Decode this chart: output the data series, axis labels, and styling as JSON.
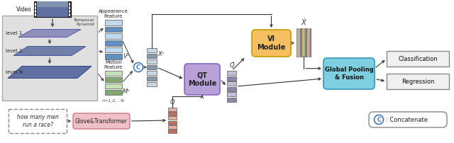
{
  "fig_bg": "#ffffff",
  "elements": {
    "video_label": "Video",
    "temporal_pyramid_label": "Temporal\nPyramid",
    "level1": "level 1",
    "level2": "level 2",
    "levelN": "level N",
    "appearance_feature": "Appearance\nFeature",
    "motion_feature": "Motion\nFeature",
    "n_label": "n=1,2,...N",
    "vn_label": "Vⁿ",
    "mn_label": "Mⁿ",
    "xn_label": "Xⁿ",
    "q_label": "Q",
    "q_hat_label": "Q̂",
    "x_hat_label": "Ẋ",
    "qt_module": "QT\nModule",
    "vi_module": "VI\nModule",
    "global_pooling": "Global Pooling\n& Fusion",
    "classification": "Classification",
    "regression": "Regression",
    "question_text": "how many men\nrun a race?",
    "glove": "Glove&Transformer",
    "concatenate_label": ": Concatenate",
    "qt_color": "#b8a0d8",
    "vi_color": "#f5c060",
    "global_color": "#7ecfdf",
    "glove_color": "#f0c0c8",
    "app_feature_color_dark": "#6090c0",
    "app_feature_color_light": "#c0d8f0",
    "mot_feature_color_dark": "#80a870",
    "mot_feature_color_light": "#c8e0b8",
    "xn_color_dark": "#8899aa",
    "xn_color_light": "#c8d8e0",
    "q_color_dark": "#c07060",
    "q_color_light": "#e8b0a0",
    "qhat_color_dark": "#8888aa",
    "qhat_color_light": "#c0c0d8",
    "xhat_color_dark": "#b09050",
    "xhat_color_light": "#ddc880",
    "pyramid_bg": "#e0e0e0"
  }
}
